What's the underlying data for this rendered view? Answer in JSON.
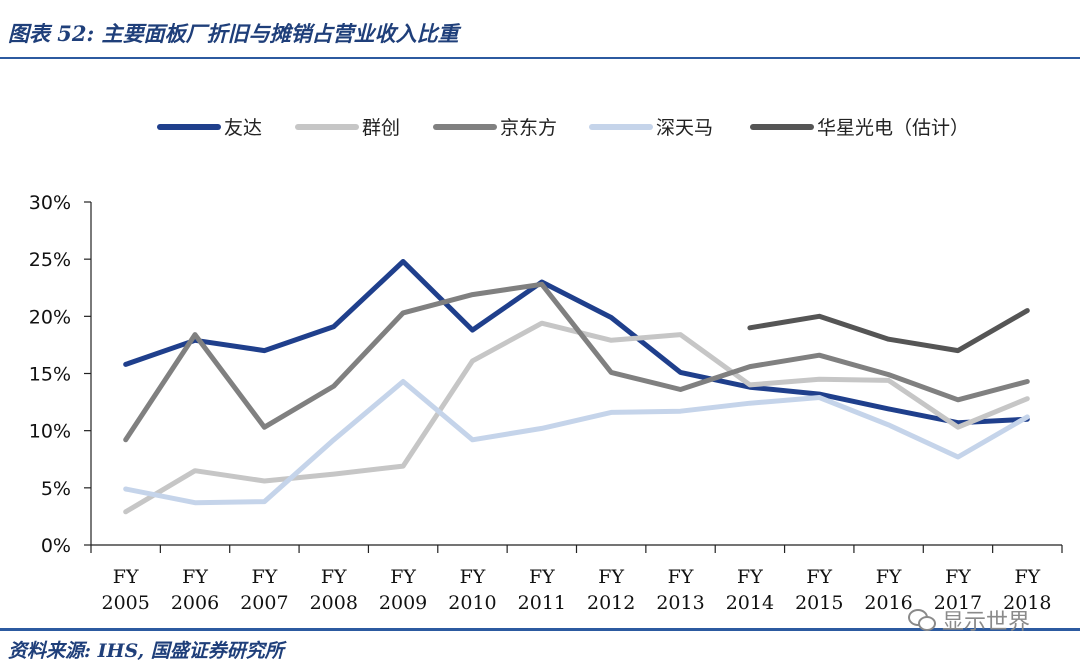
{
  "header": {
    "title": "图表 52: 主要面板厂折旧与摊销占营业收入比重"
  },
  "footer": {
    "source": "资料来源: IHS, 国盛证券研究所"
  },
  "watermark": {
    "text": "显示世界",
    "icon": "wechat-icon"
  },
  "chart_data": {
    "type": "line",
    "title": "图表 52: 主要面板厂折旧与摊销占营业收入比重",
    "xlabel": "",
    "ylabel": "",
    "categories": [
      "FY 2005",
      "FY 2006",
      "FY 2007",
      "FY 2008",
      "FY 2009",
      "FY 2010",
      "FY 2011",
      "FY 2012",
      "FY 2013",
      "FY 2014",
      "FY 2015",
      "FY 2016",
      "FY 2017",
      "FY 2018"
    ],
    "ylim": [
      0,
      30
    ],
    "yticks": [
      "0%",
      "5%",
      "10%",
      "15%",
      "20%",
      "25%",
      "30%"
    ],
    "legend_position": "top",
    "grid": false,
    "series": [
      {
        "name": "友达",
        "color": "#1f3f8c",
        "values": [
          15.8,
          17.9,
          17.0,
          19.1,
          24.8,
          18.8,
          23.0,
          19.9,
          15.1,
          13.8,
          13.2,
          11.9,
          10.7,
          11.0
        ]
      },
      {
        "name": "群创",
        "color": "#c6c6c6",
        "values": [
          2.9,
          6.5,
          5.6,
          6.2,
          6.9,
          16.1,
          19.4,
          17.9,
          18.4,
          14.0,
          14.5,
          14.4,
          10.3,
          12.8
        ]
      },
      {
        "name": "京东方",
        "color": "#808080",
        "values": [
          9.2,
          18.4,
          10.3,
          13.9,
          20.3,
          21.9,
          22.8,
          15.1,
          13.6,
          15.6,
          16.6,
          14.9,
          12.7,
          14.3
        ]
      },
      {
        "name": "深天马",
        "color": "#c5d4ea",
        "values": [
          4.9,
          3.7,
          3.8,
          9.2,
          14.3,
          9.2,
          10.2,
          11.6,
          11.7,
          12.4,
          12.9,
          10.5,
          7.7,
          11.2
        ]
      },
      {
        "name": "华星光电（估计）",
        "color": "#555555",
        "values": [
          null,
          null,
          null,
          null,
          null,
          null,
          null,
          null,
          null,
          19.0,
          20.0,
          18.0,
          17.0,
          20.5
        ]
      }
    ]
  }
}
